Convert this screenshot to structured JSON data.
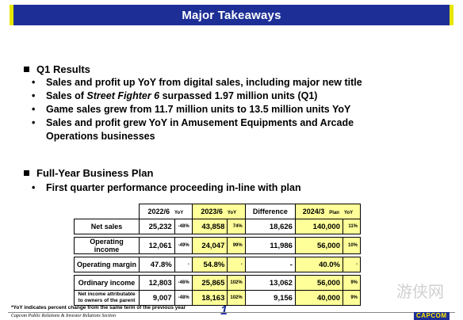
{
  "header": {
    "title": "Major Takeaways"
  },
  "q1": {
    "heading": "Q1 Results",
    "bullets": [
      "Sales and profit up YoY from digital sales, including major new title",
      "Sales of ",
      "Game sales grew from 11.7 million units to 13.5 million units YoY",
      "Sales and profit grew YoY in Amusement Equipments and Arcade",
      "Operations businesses"
    ],
    "sf_prefix": "Sales of ",
    "sf_title": "Street Fighter 6",
    "sf_suffix": " surpassed 1.97 million units (Q1)"
  },
  "plan": {
    "heading": "Full-Year Business Plan",
    "bullet": "First quarter performance proceeding in-line with plan"
  },
  "table": {
    "headers": {
      "col1": "2022/6",
      "col1_yoy": "YoY",
      "col2": "2023/6",
      "col2_yoy": "YoY",
      "diff": "Difference",
      "col3": "2024/3",
      "col3_sub": "Plan",
      "col3_yoy": "YoY"
    },
    "rows": [
      {
        "label": "Net sales",
        "v1": "25,232",
        "y1": "-48%",
        "v2": "43,858",
        "y2": "74%",
        "diff": "18,626",
        "v3": "140,000",
        "y3": "11%"
      },
      {
        "label": "Operating income",
        "v1": "12,061",
        "y1": "-49%",
        "v2": "24,047",
        "y2": "99%",
        "diff": "11,986",
        "v3": "56,000",
        "y3": "10%"
      },
      {
        "label": "Operating margin",
        "v1": "47.8%",
        "y1": "-",
        "v2": "54.8%",
        "y2": "-",
        "diff": "-",
        "v3": "40.0%",
        "y3": "-"
      },
      {
        "label": "Ordinary income",
        "v1": "12,803",
        "y1": "-46%",
        "v2": "25,865",
        "y2": "102%",
        "diff": "13,062",
        "v3": "56,000",
        "y3": "9%"
      },
      {
        "label": "Net income attributable to owners of the parent",
        "v1": "9,007",
        "y1": "-48%",
        "v2": "18,163",
        "y2": "102%",
        "diff": "9,156",
        "v3": "40,000",
        "y3": "9%"
      }
    ]
  },
  "footer": {
    "note": "*YoY indicates percent change from the same term of the previous year",
    "org": "Capcom Public Relations & Investor Relations Section",
    "page": "1",
    "logo": "CAPCOM",
    "watermark": "游侠网"
  }
}
